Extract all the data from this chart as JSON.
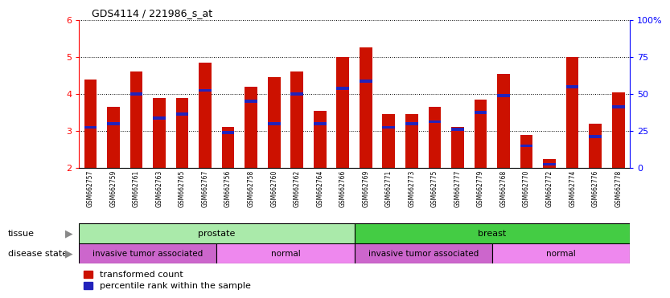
{
  "title": "GDS4114 / 221986_s_at",
  "samples": [
    "GSM662757",
    "GSM662759",
    "GSM662761",
    "GSM662763",
    "GSM662765",
    "GSM662767",
    "GSM662756",
    "GSM662758",
    "GSM662760",
    "GSM662762",
    "GSM662764",
    "GSM662766",
    "GSM662769",
    "GSM662771",
    "GSM662773",
    "GSM662775",
    "GSM662777",
    "GSM662779",
    "GSM662768",
    "GSM662770",
    "GSM662772",
    "GSM662774",
    "GSM662776",
    "GSM662778"
  ],
  "red_values": [
    4.4,
    3.65,
    4.6,
    3.9,
    3.9,
    4.85,
    3.1,
    4.2,
    4.45,
    4.6,
    3.55,
    5.0,
    5.25,
    3.45,
    3.45,
    3.65,
    3.1,
    3.85,
    4.55,
    2.9,
    2.25,
    5.0,
    3.2,
    4.05
  ],
  "blue_values": [
    3.1,
    3.2,
    4.0,
    3.35,
    3.45,
    4.1,
    2.95,
    3.8,
    3.2,
    4.0,
    3.2,
    4.15,
    4.35,
    3.1,
    3.2,
    3.25,
    3.05,
    3.5,
    3.95,
    2.6,
    2.1,
    4.2,
    2.85,
    3.65
  ],
  "ylim": [
    2,
    6
  ],
  "yticks_left": [
    2,
    3,
    4,
    5,
    6
  ],
  "yticks_right_labels": [
    "0",
    "25",
    "50",
    "75",
    "100%"
  ],
  "yticks_right_vals": [
    2,
    3,
    4,
    5,
    6
  ],
  "tissue_groups": [
    {
      "label": "prostate",
      "start": 0,
      "end": 12,
      "color": "#AAEAAA"
    },
    {
      "label": "breast",
      "start": 12,
      "end": 24,
      "color": "#44CC44"
    }
  ],
  "disease_groups": [
    {
      "label": "invasive tumor associated",
      "start": 0,
      "end": 6,
      "color": "#CC66CC"
    },
    {
      "label": "normal",
      "start": 6,
      "end": 12,
      "color": "#EE88EE"
    },
    {
      "label": "invasive tumor associated",
      "start": 12,
      "end": 18,
      "color": "#CC66CC"
    },
    {
      "label": "normal",
      "start": 18,
      "end": 24,
      "color": "#EE88EE"
    }
  ],
  "bar_color": "#CC1100",
  "blue_color": "#2222BB",
  "bg_color": "#FFFFFF",
  "legend_red": "transformed count",
  "legend_blue": "percentile rank within the sample",
  "bar_width": 0.55
}
